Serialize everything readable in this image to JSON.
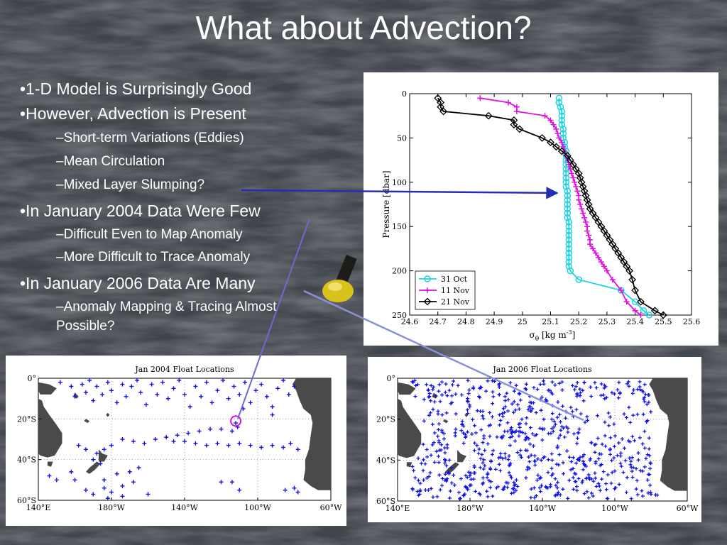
{
  "slide": {
    "title": "What about Advection?",
    "bullets": [
      {
        "text": "•1-D Model is Surprisingly Good"
      },
      {
        "text": "•However, Advection is Present"
      },
      {
        "text": "–Short-term Variations (Eddies)"
      },
      {
        "text": "–Mean Circulation"
      },
      {
        "text": "–Mixed Layer Slumping?"
      },
      {
        "text": "•In January 2004 Data Were Few"
      },
      {
        "text": "–Difficult Even to Map Anomaly"
      },
      {
        "text": "–More Difficult to Trace Anomaly"
      },
      {
        "text": "•In January 2006 Data Are Many"
      },
      {
        "text": "–Anomaly Mapping & Tracing Almost"
      },
      {
        "text": "Possible?"
      }
    ]
  },
  "colors": {
    "cyan": "#22d3e0",
    "magenta": "#e010e0",
    "black": "#000000",
    "float": "#1010e8",
    "land": "#4a4a4a",
    "arrow": "#2a2ab8"
  },
  "profile_chart": {
    "xlabel_main": "σ",
    "xlabel_sub": "θ",
    "xlabel_rest": " [kg m",
    "xlabel_sup": "-3",
    "xlabel_end": "]",
    "ylabel": "Pressure [dbar]",
    "xticks": [
      "24.6",
      "24.7",
      "24.8",
      "24.9",
      "25",
      "25.1",
      "25.2",
      "25.3",
      "25.4",
      "25.5",
      "25.6"
    ],
    "yticks": [
      "0",
      "50",
      "100",
      "150",
      "200",
      "250"
    ]
  },
  "chart_data": [
    {
      "type": "line",
      "xlabel": "σθ [kg m-3]",
      "ylabel": "Pressure [dbar]",
      "xlim": [
        24.6,
        25.6
      ],
      "ylim": [
        0,
        250
      ],
      "y_inverted": true,
      "legend_position": "bottom-left",
      "series": [
        {
          "name": "31 Oct",
          "color": "#22d3e0",
          "marker": "circle",
          "points": [
            [
              25.13,
              5
            ],
            [
              25.13,
              10
            ],
            [
              25.135,
              15
            ],
            [
              25.14,
              20
            ],
            [
              25.14,
              25
            ],
            [
              25.14,
              30
            ],
            [
              25.14,
              35
            ],
            [
              25.145,
              40
            ],
            [
              25.145,
              45
            ],
            [
              25.145,
              50
            ],
            [
              25.15,
              55
            ],
            [
              25.15,
              60
            ],
            [
              25.155,
              65
            ],
            [
              25.155,
              70
            ],
            [
              25.155,
              75
            ],
            [
              25.155,
              80
            ],
            [
              25.155,
              85
            ],
            [
              25.155,
              90
            ],
            [
              25.155,
              95
            ],
            [
              25.155,
              100
            ],
            [
              25.155,
              105
            ],
            [
              25.16,
              110
            ],
            [
              25.16,
              115
            ],
            [
              25.16,
              120
            ],
            [
              25.16,
              125
            ],
            [
              25.16,
              130
            ],
            [
              25.16,
              135
            ],
            [
              25.16,
              140
            ],
            [
              25.165,
              145
            ],
            [
              25.165,
              150
            ],
            [
              25.165,
              155
            ],
            [
              25.165,
              160
            ],
            [
              25.165,
              165
            ],
            [
              25.165,
              170
            ],
            [
              25.165,
              175
            ],
            [
              25.165,
              180
            ],
            [
              25.165,
              185
            ],
            [
              25.165,
              190
            ],
            [
              25.165,
              195
            ],
            [
              25.17,
              200
            ],
            [
              25.2,
              210
            ],
            [
              25.35,
              222
            ],
            [
              25.4,
              235
            ],
            [
              25.43,
              245
            ],
            [
              25.45,
              250
            ]
          ]
        },
        {
          "name": "11 Nov",
          "color": "#e010e0",
          "marker": "plus",
          "points": [
            [
              24.85,
              5
            ],
            [
              24.95,
              10
            ],
            [
              24.98,
              15
            ],
            [
              24.98,
              20
            ],
            [
              25.08,
              25
            ],
            [
              25.1,
              30
            ],
            [
              25.11,
              35
            ],
            [
              25.12,
              40
            ],
            [
              25.125,
              45
            ],
            [
              25.13,
              50
            ],
            [
              25.14,
              55
            ],
            [
              25.145,
              60
            ],
            [
              25.15,
              65
            ],
            [
              25.155,
              70
            ],
            [
              25.16,
              75
            ],
            [
              25.165,
              80
            ],
            [
              25.17,
              85
            ],
            [
              25.175,
              90
            ],
            [
              25.18,
              95
            ],
            [
              25.185,
              100
            ],
            [
              25.19,
              105
            ],
            [
              25.195,
              110
            ],
            [
              25.2,
              115
            ],
            [
              25.2,
              120
            ],
            [
              25.205,
              125
            ],
            [
              25.21,
              130
            ],
            [
              25.215,
              135
            ],
            [
              25.22,
              140
            ],
            [
              25.225,
              145
            ],
            [
              25.23,
              150
            ],
            [
              25.23,
              155
            ],
            [
              25.235,
              160
            ],
            [
              25.24,
              165
            ],
            [
              25.24,
              170
            ],
            [
              25.25,
              175
            ],
            [
              25.26,
              180
            ],
            [
              25.27,
              185
            ],
            [
              25.28,
              190
            ],
            [
              25.29,
              195
            ],
            [
              25.3,
              200
            ],
            [
              25.32,
              210
            ],
            [
              25.35,
              222
            ],
            [
              25.37,
              235
            ],
            [
              25.4,
              245
            ],
            [
              25.42,
              250
            ]
          ]
        },
        {
          "name": "21 Nov",
          "color": "#000000",
          "marker": "diamond",
          "points": [
            [
              24.7,
              5
            ],
            [
              24.71,
              10
            ],
            [
              24.71,
              15
            ],
            [
              24.72,
              20
            ],
            [
              24.88,
              25
            ],
            [
              24.97,
              30
            ],
            [
              24.97,
              35
            ],
            [
              24.99,
              40
            ],
            [
              25.07,
              50
            ],
            [
              25.1,
              55
            ],
            [
              25.12,
              60
            ],
            [
              25.14,
              65
            ],
            [
              25.16,
              70
            ],
            [
              25.17,
              75
            ],
            [
              25.18,
              80
            ],
            [
              25.19,
              85
            ],
            [
              25.2,
              90
            ],
            [
              25.205,
              95
            ],
            [
              25.21,
              100
            ],
            [
              25.215,
              105
            ],
            [
              25.22,
              110
            ],
            [
              25.225,
              115
            ],
            [
              25.23,
              120
            ],
            [
              25.235,
              125
            ],
            [
              25.24,
              130
            ],
            [
              25.25,
              135
            ],
            [
              25.26,
              140
            ],
            [
              25.27,
              145
            ],
            [
              25.28,
              150
            ],
            [
              25.29,
              155
            ],
            [
              25.3,
              160
            ],
            [
              25.31,
              165
            ],
            [
              25.32,
              170
            ],
            [
              25.33,
              175
            ],
            [
              25.34,
              180
            ],
            [
              25.35,
              185
            ],
            [
              25.36,
              190
            ],
            [
              25.37,
              195
            ],
            [
              25.38,
              200
            ],
            [
              25.39,
              210
            ],
            [
              25.4,
              222
            ],
            [
              25.42,
              235
            ],
            [
              25.47,
              245
            ],
            [
              25.5,
              250
            ]
          ]
        }
      ]
    },
    {
      "type": "scatter",
      "title": "Jan 2004 Float Locations",
      "x_axis": "longitude",
      "xlim": [
        140,
        300
      ],
      "ylim": [
        -60,
        0
      ],
      "xtick_labels": [
        "140°E",
        "180°W",
        "140°W",
        "100°W",
        "60°W"
      ],
      "ytick_labels": [
        "0°",
        "20°S",
        "40°S",
        "60°S"
      ],
      "highlight_circle": [
        248,
        -21
      ],
      "points": [
        [
          152,
          -2
        ],
        [
          158,
          -4
        ],
        [
          160,
          -9
        ],
        [
          164,
          -3
        ],
        [
          166,
          -7
        ],
        [
          168,
          -1
        ],
        [
          170,
          -11
        ],
        [
          172,
          -4
        ],
        [
          175,
          -8
        ],
        [
          178,
          -2
        ],
        [
          180,
          -6
        ],
        [
          183,
          -12
        ],
        [
          186,
          -3
        ],
        [
          188,
          -9
        ],
        [
          191,
          -4
        ],
        [
          194,
          -1
        ],
        [
          196,
          -7
        ],
        [
          199,
          -13
        ],
        [
          202,
          -3
        ],
        [
          205,
          -8
        ],
        [
          208,
          -2
        ],
        [
          211,
          -10
        ],
        [
          214,
          -5
        ],
        [
          217,
          -1
        ],
        [
          220,
          -8
        ],
        [
          223,
          -14
        ],
        [
          226,
          -4
        ],
        [
          229,
          -9
        ],
        [
          232,
          -2
        ],
        [
          235,
          -12
        ],
        [
          238,
          -6
        ],
        [
          241,
          -1
        ],
        [
          244,
          -10
        ],
        [
          247,
          -4
        ],
        [
          250,
          -8
        ],
        [
          253,
          -2
        ],
        [
          256,
          -12
        ],
        [
          259,
          -6
        ],
        [
          262,
          -3
        ],
        [
          265,
          -9
        ],
        [
          268,
          -14
        ],
        [
          271,
          -5
        ],
        [
          274,
          -1
        ],
        [
          277,
          -8
        ],
        [
          280,
          -4
        ],
        [
          268,
          -18
        ],
        [
          252,
          -15
        ],
        [
          248,
          -22
        ],
        [
          249,
          -24
        ],
        [
          246,
          -26
        ],
        [
          240,
          -25
        ],
        [
          234,
          -25
        ],
        [
          228,
          -26
        ],
        [
          222,
          -27
        ],
        [
          216,
          -28
        ],
        [
          210,
          -29
        ],
        [
          204,
          -30
        ],
        [
          198,
          -32
        ],
        [
          192,
          -31
        ],
        [
          186,
          -30
        ],
        [
          180,
          -33
        ],
        [
          176,
          -35
        ],
        [
          172,
          -37
        ],
        [
          170,
          -40
        ],
        [
          174,
          -42
        ],
        [
          162,
          -33
        ],
        [
          166,
          -35
        ],
        [
          214,
          -31
        ],
        [
          220,
          -31
        ],
        [
          226,
          -32
        ],
        [
          232,
          -33
        ],
        [
          238,
          -32
        ],
        [
          244,
          -33
        ],
        [
          250,
          -32
        ],
        [
          256,
          -33
        ],
        [
          262,
          -34
        ],
        [
          268,
          -33
        ],
        [
          274,
          -34
        ],
        [
          278,
          -32
        ],
        [
          282,
          -35
        ],
        [
          158,
          -46
        ],
        [
          160,
          -50
        ],
        [
          166,
          -55
        ],
        [
          170,
          -57
        ],
        [
          176,
          -54
        ],
        [
          180,
          -56
        ],
        [
          186,
          -53
        ],
        [
          192,
          -51
        ],
        [
          178,
          -59
        ],
        [
          186,
          -58
        ],
        [
          200,
          -57
        ],
        [
          176,
          -50
        ],
        [
          183,
          -47
        ],
        [
          190,
          -46
        ],
        [
          195,
          -44
        ],
        [
          275,
          -55
        ],
        [
          280,
          -54
        ],
        [
          282,
          -56
        ],
        [
          240,
          -51
        ],
        [
          246,
          -51
        ],
        [
          250,
          -55
        ],
        [
          146,
          -48
        ],
        [
          150,
          -50
        ]
      ]
    },
    {
      "type": "scatter",
      "title": "Jan 2006 Float Locations",
      "x_axis": "longitude",
      "xlim": [
        140,
        300
      ],
      "ylim": [
        -60,
        0
      ],
      "xtick_labels": [
        "140°E",
        "180°W",
        "140°W",
        "100°W",
        "60°W"
      ],
      "ytick_labels": [
        "0°",
        "20°S",
        "40°S",
        "60°S"
      ],
      "points_approx_count": 700,
      "distribution": "dense across 0°–60°S, 140°E–70°W, sparse near 20°S 100°W"
    }
  ],
  "panels": {
    "map2004": {
      "title": "Jan 2004 Float Locations"
    },
    "map2006": {
      "title": "Jan 2006 Float Locations"
    },
    "map_xticks": [
      "140°E",
      "180°W",
      "140°W",
      "100°W",
      "60°W"
    ],
    "map_yticks": [
      "0°",
      "20°S",
      "40°S",
      "60°S"
    ]
  }
}
